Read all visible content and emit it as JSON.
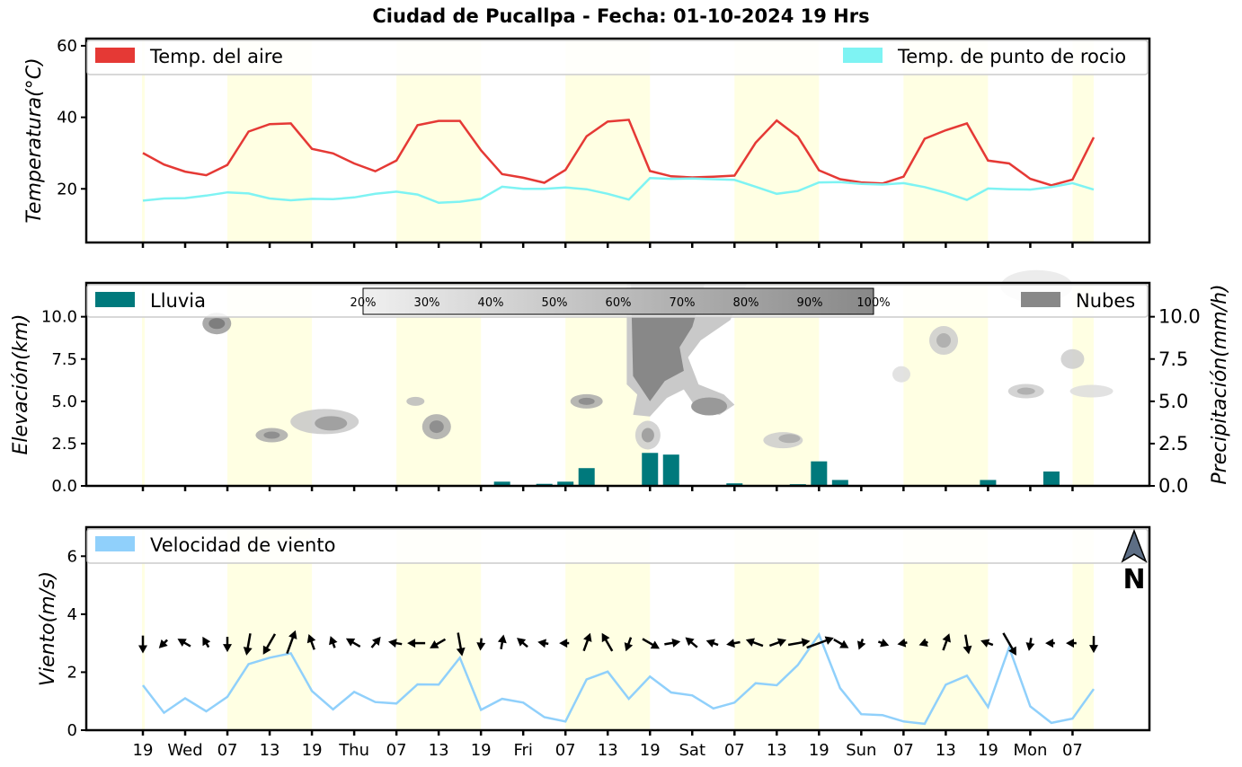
{
  "title": "Ciudad de Pucallpa   -   Fecha: 01-10-2024 19 Hrs",
  "chart_data": [
    {
      "type": "line",
      "ylabel": "Temperatura(°C)",
      "ylim": [
        5,
        62
      ],
      "yticks": [
        20,
        40,
        60
      ],
      "legend_position": "top",
      "series": [
        {
          "name": "Temp. del aire",
          "color": "#e53935",
          "values": [
            30,
            26.8,
            24.8,
            23.8,
            26.7,
            36,
            38.1,
            38.3,
            31.2,
            29.9,
            27.1,
            24.9,
            27.9,
            37.8,
            39,
            39,
            30.8,
            24.1,
            23.1,
            21.7,
            25.3,
            34.7,
            38.8,
            39.3,
            25,
            23.5,
            23.2,
            23.4,
            23.7,
            32.9,
            39.1,
            34.6,
            25.2,
            22.7,
            21.8,
            21.5,
            23.4,
            34,
            36.4,
            38.3,
            27.9,
            27.1,
            22.8,
            21,
            22.6,
            34.4
          ]
        },
        {
          "name": "Temp. de punto de rocio",
          "color": "#7ef3f3",
          "values": [
            16.7,
            17.3,
            17.4,
            18.1,
            19,
            18.7,
            17.3,
            16.8,
            17.2,
            17.1,
            17.6,
            18.6,
            19.2,
            18.4,
            16.1,
            16.4,
            17.2,
            20.6,
            20,
            20,
            20.4,
            19.9,
            18.6,
            17,
            23,
            22.8,
            22.9,
            22.7,
            22.5,
            20.6,
            18.6,
            19.4,
            21.8,
            21.9,
            21.4,
            21.2,
            21.6,
            20.5,
            18.9,
            16.9,
            20.1,
            19.9,
            19.8,
            20.5,
            21.6,
            19.8
          ]
        }
      ],
      "daylight_bands": [
        [
          0,
          0
        ],
        [
          4,
          8
        ],
        [
          12,
          16
        ],
        [
          20,
          24
        ],
        [
          28,
          32
        ],
        [
          36,
          40
        ],
        [
          44,
          45
        ]
      ]
    },
    {
      "type": "bar",
      "ylabel": "Elevación(km)",
      "y2label": "Precipitación(mm/h)",
      "ylim": [
        0,
        12
      ],
      "yticks": [
        "0.0",
        "2.5",
        "5.0",
        "7.5",
        "10.0"
      ],
      "series": [
        {
          "name": "Lluvia",
          "color": "#00797c",
          "values": [
            0,
            0,
            0,
            0,
            0,
            0,
            0,
            0,
            0,
            0,
            0,
            0,
            0,
            0,
            0,
            0,
            0,
            0.25,
            0,
            0.12,
            0.25,
            1.05,
            0,
            0,
            1.95,
            1.85,
            0.05,
            0,
            0.15,
            0,
            0,
            0.1,
            1.45,
            0.35,
            0,
            0,
            0,
            0,
            0,
            0,
            0.35,
            0,
            0,
            0.85,
            0,
            0
          ]
        },
        {
          "name": "Nubes",
          "color": "#888888"
        }
      ],
      "cloud_colorbar": [
        "20%",
        "30%",
        "40%",
        "50%",
        "60%",
        "70%",
        "80%",
        "90%",
        "100%"
      ]
    },
    {
      "type": "line",
      "ylabel": "Viento(m/s)",
      "ylim": [
        0,
        7
      ],
      "yticks": [
        0,
        2,
        4,
        6
      ],
      "series": [
        {
          "name": "Velocidad de viento",
          "color": "#90d0fb",
          "values": [
            1.55,
            0.6,
            1.1,
            0.65,
            1.15,
            2.28,
            2.5,
            2.65,
            1.35,
            0.72,
            1.32,
            0.97,
            0.92,
            1.58,
            1.57,
            2.5,
            0.7,
            1.08,
            0.95,
            0.45,
            0.3,
            1.75,
            2.02,
            1.08,
            1.85,
            1.3,
            1.2,
            0.75,
            0.95,
            1.62,
            1.55,
            2.25,
            3.3,
            1.45,
            0.55,
            0.52,
            0.3,
            0.22,
            1.57,
            1.88,
            0.8,
            2.85,
            0.82,
            0.25,
            0.4,
            1.42
          ]
        }
      ],
      "wind_direction_deg": [
        0,
        45,
        120,
        150,
        0,
        10,
        30,
        200,
        160,
        160,
        120,
        220,
        100,
        90,
        60,
        350,
        5,
        190,
        130,
        100,
        90,
        200,
        150,
        20,
        300,
        260,
        130,
        110,
        80,
        110,
        250,
        260,
        250,
        300,
        20,
        290,
        80,
        70,
        200,
        350,
        110,
        330,
        10,
        90,
        90,
        0
      ],
      "north_marker": "N"
    }
  ],
  "x_axis": {
    "tick_positions": [
      0,
      2,
      4,
      6,
      8,
      10,
      12,
      14,
      16,
      18,
      20,
      22,
      24,
      26,
      28,
      30,
      32,
      34,
      36,
      38,
      40,
      42,
      44
    ],
    "tick_labels": [
      "19",
      "Wed",
      "07",
      "13",
      "19",
      "Thu",
      "07",
      "13",
      "19",
      "Fri",
      "07",
      "13",
      "19",
      "Sat",
      "07",
      "13",
      "19",
      "Sun",
      "07",
      "13",
      "19",
      "Mon",
      "07"
    ]
  }
}
